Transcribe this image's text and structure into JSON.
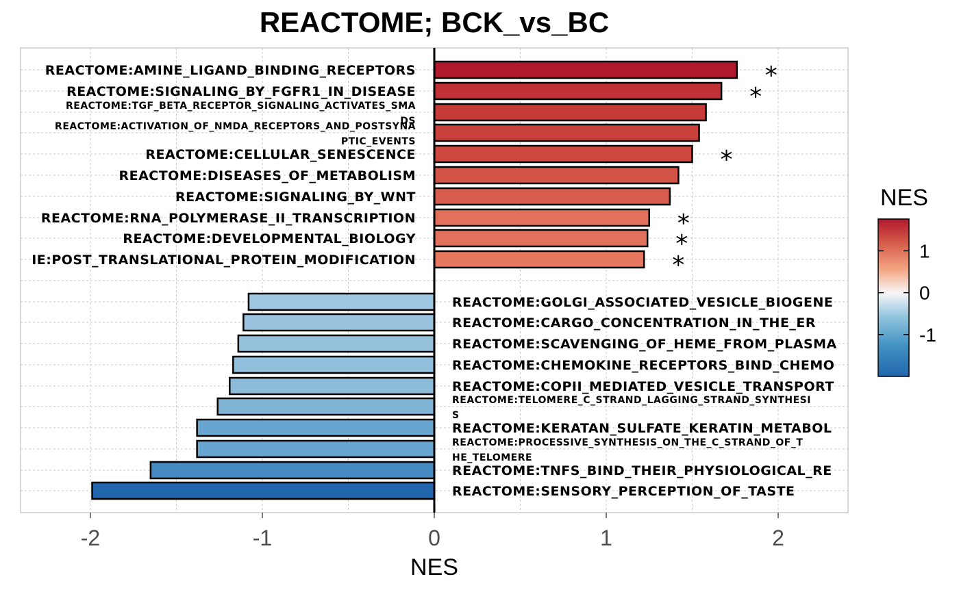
{
  "chart_data": {
    "type": "bar",
    "orientation": "horizontal",
    "title": "REACTOME; BCK_vs_BC",
    "xlabel": "NES",
    "ylabel": "",
    "xlim": [
      -2.4,
      2.4
    ],
    "xticks": [
      -2,
      -1,
      0,
      1,
      2
    ],
    "grid": true,
    "significance_marker": "*",
    "color_scale": {
      "title": "NES",
      "ticks": [
        1,
        0,
        -1
      ],
      "range": [
        -2.0,
        1.76
      ],
      "colors": [
        "#2166ac",
        "#4393c3",
        "#92c5de",
        "#f7f7f7",
        "#f4a582",
        "#d6604d",
        "#b2182b"
      ]
    },
    "positive_bars": [
      {
        "label": "REACTOME:AMINE_LIGAND_BINDING_RECEPTORS",
        "value": 1.76,
        "significant": true,
        "color": "#b2182b"
      },
      {
        "label": "REACTOME:SIGNALING_BY_FGFR1_IN_DISEASE",
        "value": 1.67,
        "significant": true,
        "color": "#bf3134"
      },
      {
        "label": "REACTOME:TGF_BETA_RECEPTOR_SIGNALING_ACTIVATES_SMADS",
        "label_lines": [
          "REACTOME:TGF_BETA_RECEPTOR_SIGNALING_ACTIVATES_SMA",
          "DS"
        ],
        "value": 1.58,
        "significant": false,
        "color": "#c63a37"
      },
      {
        "label": "REACTOME:ACTIVATION_OF_NMDA_RECEPTORS_AND_POSTSYNAPTIC_EVENTS",
        "label_lines": [
          "REACTOME:ACTIVATION_OF_NMDA_RECEPTORS_AND_POSTSYNA",
          "PTIC_EVENTS"
        ],
        "value": 1.54,
        "significant": false,
        "color": "#c9413b"
      },
      {
        "label": "REACTOME:CELLULAR_SENESCENCE",
        "value": 1.5,
        "significant": true,
        "color": "#cd473e"
      },
      {
        "label": "REACTOME:DISEASES_OF_METABOLISM",
        "value": 1.42,
        "significant": false,
        "color": "#d25345"
      },
      {
        "label": "REACTOME:SIGNALING_BY_WNT",
        "value": 1.37,
        "significant": false,
        "color": "#d75c4d"
      },
      {
        "label": "REACTOME:RNA_POLYMERASE_II_TRANSCRIPTION",
        "value": 1.25,
        "significant": true,
        "color": "#e2705b"
      },
      {
        "label": "REACTOME:DEVELOPMENTAL_BIOLOGY",
        "value": 1.24,
        "significant": true,
        "color": "#e3725c"
      },
      {
        "label": "REACTOME:POST_TRANSLATIONAL_PROTEIN_MODIFICATION",
        "visible_label": "IE:POST_TRANSLATIONAL_PROTEIN_MODIFICATION",
        "value": 1.22,
        "significant": true,
        "color": "#e6775f"
      }
    ],
    "negative_bars": [
      {
        "label": "REACTOME:GOLGI_ASSOCIATED_VESICLE_BIOGENE",
        "value": -1.08,
        "significant": false,
        "color": "#9ec6e0"
      },
      {
        "label": "REACTOME:CARGO_CONCENTRATION_IN_THE_ER",
        "value": -1.11,
        "significant": false,
        "color": "#99c3de"
      },
      {
        "label": "REACTOME:SCAVENGING_OF_HEME_FROM_PLASMA",
        "value": -1.14,
        "significant": false,
        "color": "#95c1dd"
      },
      {
        "label": "REACTOME:CHEMOKINE_RECEPTORS_BIND_CHEMO",
        "value": -1.17,
        "significant": false,
        "color": "#91bfdc"
      },
      {
        "label": "REACTOME:COPII_MEDIATED_VESICLE_TRANSPORT",
        "value": -1.19,
        "significant": false,
        "color": "#8dbcda"
      },
      {
        "label": "REACTOME:TELOMERE_C_STRAND_LAGGING_STRAND_SYNTHESIS",
        "label_lines": [
          "REACTOME:TELOMERE_C_STRAND_LAGGING_STRAND_SYNTHESI",
          "S"
        ],
        "value": -1.26,
        "significant": false,
        "color": "#81b5d6"
      },
      {
        "label": "REACTOME:KERATAN_SULFATE_KERATIN_METABOL",
        "value": -1.38,
        "significant": false,
        "color": "#68a6cf"
      },
      {
        "label": "REACTOME:PROCESSIVE_SYNTHESIS_ON_THE_C_STRAND_OF_THE_TELOMERE",
        "label_lines": [
          "REACTOME:PROCESSIVE_SYNTHESIS_ON_THE_C_STRAND_OF_T",
          "HE_TELOMERE"
        ],
        "value": -1.38,
        "significant": false,
        "color": "#68a6cf"
      },
      {
        "label": "REACTOME:TNFS_BIND_THEIR_PHYSIOLOGICAL_RE",
        "value": -1.65,
        "significant": false,
        "color": "#4689c1"
      },
      {
        "label": "REACTOME:SENSORY_PERCEPTION_OF_TASTE",
        "value": -1.99,
        "significant": false,
        "color": "#2166ac"
      }
    ]
  }
}
